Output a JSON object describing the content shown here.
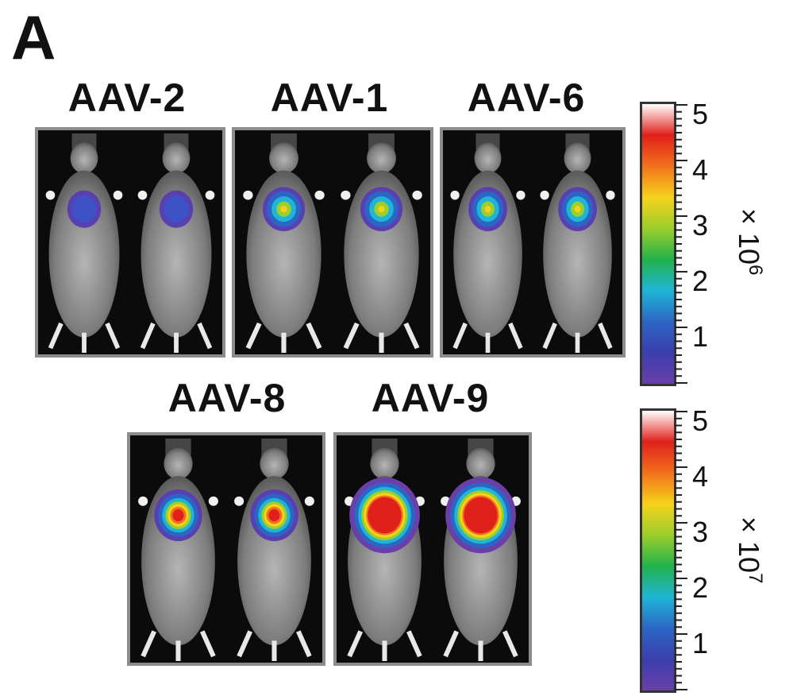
{
  "panel_label": "A",
  "groups": [
    {
      "label": "AAV-2",
      "signal": "low"
    },
    {
      "label": "AAV-1",
      "signal": "mid"
    },
    {
      "label": "AAV-6",
      "signal": "mid"
    },
    {
      "label": "AAV-8",
      "signal": "high"
    },
    {
      "label": "AAV-9",
      "signal": "max"
    }
  ],
  "scale_top": {
    "ticks": [
      "5",
      "4",
      "3",
      "2",
      "1"
    ],
    "multiplier": "× 10",
    "exponent": "6",
    "colormap": [
      "#ffffff",
      "#e0201b",
      "#f2711c",
      "#f6d21c",
      "#9cce2c",
      "#22b24a",
      "#1fb5d6",
      "#2c66c4",
      "#3b3fae",
      "#6a3fa8"
    ]
  },
  "scale_bottom": {
    "ticks": [
      "5",
      "4",
      "3",
      "2",
      "1"
    ],
    "multiplier": "× 10",
    "exponent": "7",
    "colormap": [
      "#ffffff",
      "#e0201b",
      "#f2711c",
      "#f6d21c",
      "#9cce2c",
      "#22b24a",
      "#1fb5d6",
      "#2c66c4",
      "#3b3fae",
      "#6a3fa8"
    ]
  }
}
